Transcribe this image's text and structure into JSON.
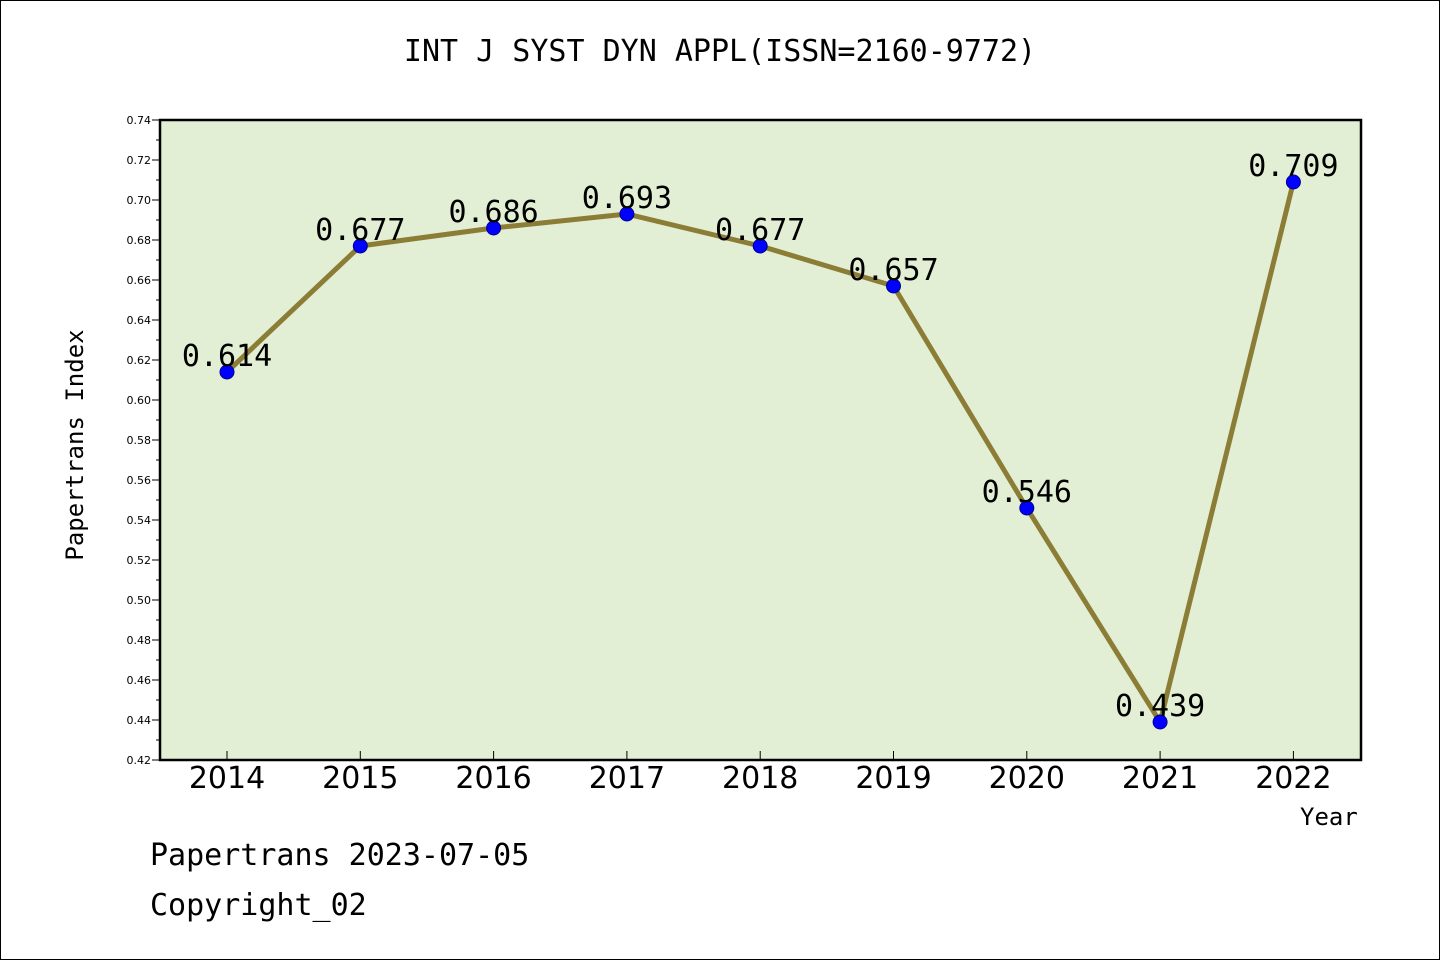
{
  "chart_data": {
    "type": "line",
    "title": "INT J SYST DYN APPL(ISSN=2160-9772)",
    "xlabel": "Year",
    "ylabel": "Papertrans Index",
    "categories": [
      "2014",
      "2015",
      "2016",
      "2017",
      "2018",
      "2019",
      "2020",
      "2021",
      "2022"
    ],
    "series": [
      {
        "values": [
          0.614,
          0.677,
          0.686,
          0.693,
          0.677,
          0.657,
          0.546,
          0.439,
          0.709
        ]
      }
    ],
    "data_labels": [
      "0.614",
      "0.677",
      "0.686",
      "0.693",
      "0.677",
      "0.657",
      "0.546",
      "0.439",
      "0.709"
    ],
    "ylim": [
      0.42,
      0.74
    ],
    "yticks": [
      "0.42",
      "0.44",
      "0.46",
      "0.48",
      "0.50",
      "0.52",
      "0.54",
      "0.56",
      "0.58",
      "0.60",
      "0.62",
      "0.64",
      "0.66",
      "0.68",
      "0.70",
      "0.72",
      "0.74"
    ],
    "grid": false,
    "colors": {
      "plot_bg": "#e2efd4",
      "line": "#8b7d35",
      "marker": "#0000ff"
    }
  },
  "footer": {
    "line1": "Papertrans 2023-07-05",
    "line2": "Copyright_02"
  }
}
